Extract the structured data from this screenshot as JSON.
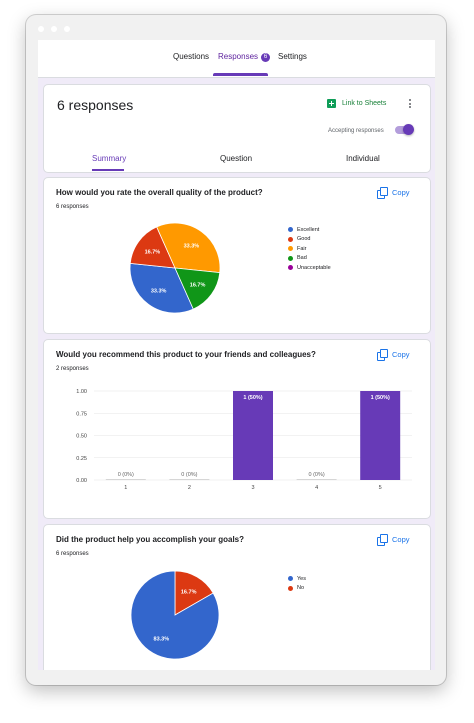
{
  "topnav": {
    "tabs": [
      {
        "label": "Questions"
      },
      {
        "label": "Responses",
        "badge": "6"
      },
      {
        "label": "Settings"
      }
    ]
  },
  "summary_card": {
    "title": "6 responses",
    "sheets_label": "Link to Sheets",
    "accepting_label": "Accepting responses",
    "accepting_on": true,
    "subtabs": [
      "Summary",
      "Question",
      "Individual"
    ]
  },
  "copy_label": "Copy",
  "questions": [
    {
      "title": "How would you rate the overall quality of the product?",
      "count": "6 responses"
    },
    {
      "title": "Would you recommend this product to your friends and colleagues?",
      "count": "2 responses"
    },
    {
      "title": "Did the product help you accomplish your goals?",
      "count": "6 responses"
    }
  ],
  "colors": {
    "accent": "#673ab7",
    "blue": "#3366cc",
    "red": "#dc3912",
    "orange": "#ff9900",
    "green": "#109618",
    "purple": "#990099",
    "bar": "#673ab7"
  },
  "chart_data": [
    {
      "type": "pie",
      "categories": [
        "Excellent",
        "Good",
        "Fair",
        "Bad",
        "Unacceptable"
      ],
      "values": [
        33.3,
        16.7,
        33.3,
        16.7,
        0
      ],
      "data_labels": [
        "33.3%",
        "16.7%",
        "33.3%",
        "16.7%",
        ""
      ],
      "colors": [
        "#3366cc",
        "#dc3912",
        "#ff9900",
        "#109618",
        "#990099"
      ],
      "legend": "right"
    },
    {
      "type": "bar",
      "categories": [
        "1",
        "2",
        "3",
        "4",
        "5"
      ],
      "values": [
        0,
        0,
        1,
        0,
        1
      ],
      "data_labels": [
        "0 (0%)",
        "0 (0%)",
        "1 (50%)",
        "0 (0%)",
        "1 (50%)"
      ],
      "yticks": [
        "0.00",
        "0.25",
        "0.50",
        "0.75",
        "1.00"
      ],
      "ylim": [
        0,
        1
      ],
      "grid": true
    },
    {
      "type": "pie",
      "categories": [
        "Yes",
        "No"
      ],
      "values": [
        83.3,
        16.7
      ],
      "data_labels": [
        "83.3%",
        "16.7%"
      ],
      "colors": [
        "#3366cc",
        "#dc3912"
      ],
      "legend": "right"
    }
  ]
}
